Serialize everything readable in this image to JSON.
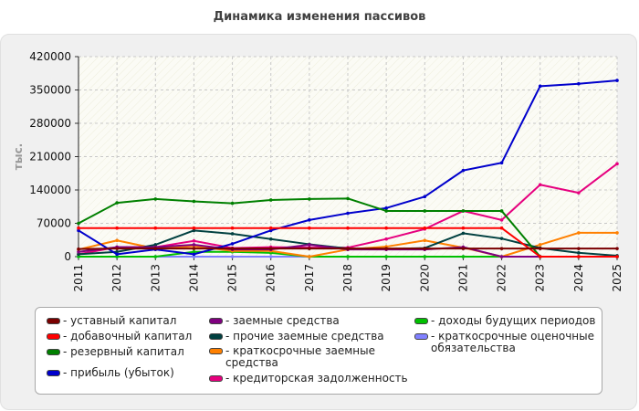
{
  "title": "Динамика изменения пассивов",
  "chart_data": {
    "type": "line",
    "ylabel": "тыс.",
    "ylim": [
      0,
      420000
    ],
    "yticks": [
      0,
      70000,
      140000,
      210000,
      280000,
      350000,
      420000
    ],
    "ytick_labels": [
      "0",
      "70000",
      "140000",
      "210000",
      "280000",
      "350000",
      "420000"
    ],
    "categories": [
      "2011",
      "2012",
      "2013",
      "2014",
      "2015",
      "2016",
      "2017",
      "2018",
      "2019",
      "2020",
      "2021",
      "2022",
      "2023",
      "2024",
      "2025"
    ],
    "grid": true,
    "legend_position": "bottom",
    "series": [
      {
        "name": "- уставный капитал",
        "color": "#7a0000",
        "values": [
          16000,
          17000,
          17000,
          17000,
          17000,
          17000,
          17000,
          17000,
          17000,
          17000,
          17000,
          17000,
          17000,
          17000,
          17000
        ]
      },
      {
        "name": "- добавочный капитал",
        "color": "#ff0000",
        "values": [
          60000,
          60000,
          60000,
          60000,
          60000,
          60000,
          60000,
          60000,
          60000,
          60000,
          60000,
          60000,
          0,
          0,
          0
        ]
      },
      {
        "name": "- резервный капитал",
        "color": "#008000",
        "values": [
          70000,
          113000,
          121000,
          116000,
          112000,
          119000,
          121000,
          122000,
          96000,
          96000,
          96000,
          96000,
          0,
          0,
          0
        ]
      },
      {
        "name": "- прибыль (убыток)",
        "color": "#0000cc",
        "values": [
          55000,
          5000,
          15000,
          5000,
          27000,
          55000,
          77000,
          91000,
          102000,
          126000,
          181000,
          197000,
          358000,
          363000,
          370000
        ]
      },
      {
        "name": "- заемные средства",
        "color": "#800080",
        "values": [
          10000,
          20000,
          20000,
          25000,
          15000,
          15000,
          25000,
          15000,
          15000,
          15000,
          20000,
          0,
          0,
          0,
          0
        ]
      },
      {
        "name": "- прочие заемные средства",
        "color": "#004040",
        "values": [
          5000,
          10000,
          25000,
          55000,
          48000,
          37000,
          26000,
          17000,
          16000,
          18000,
          49000,
          38000,
          18000,
          8000,
          2000
        ]
      },
      {
        "name": "- краткосрочные заемные средства",
        "color": "#ff8000",
        "values": [
          15000,
          34000,
          17000,
          22000,
          12000,
          12000,
          0,
          15000,
          21000,
          34000,
          19000,
          0,
          25000,
          50000,
          50000
        ]
      },
      {
        "name": "- кредиторская задолженность",
        "color": "#e6007e",
        "values": [
          5000,
          20000,
          20000,
          33000,
          18000,
          20000,
          19000,
          19000,
          37000,
          58000,
          96000,
          77000,
          151000,
          134000,
          195000
        ]
      },
      {
        "name": "- доходы будущих периодов",
        "color": "#00c000",
        "values": [
          0,
          0,
          0,
          10000,
          10000,
          8000,
          0,
          0,
          0,
          0,
          0,
          0,
          0,
          0,
          0
        ]
      },
      {
        "name": "- краткосрочные оценочные обязательства",
        "color": "#8080ff",
        "values": [
          0,
          0,
          0,
          0,
          0,
          0,
          0,
          0,
          0,
          0,
          0,
          0,
          0,
          0,
          0
        ]
      }
    ]
  },
  "legend_lines": [
    [
      "- уставный капитал"
    ],
    [
      "- добавочный капитал"
    ],
    [
      "- резервный капитал"
    ],
    [
      "- прибыль (убыток)"
    ],
    [
      "- заемные средства"
    ],
    [
      "- прочие заемные средства"
    ],
    [
      "- краткосрочные заемные",
      "средства"
    ],
    [
      "- кредиторская задолженность"
    ],
    [
      "- доходы будущих периодов"
    ],
    [
      "- краткосрочные оценочные",
      "обязательства"
    ]
  ]
}
